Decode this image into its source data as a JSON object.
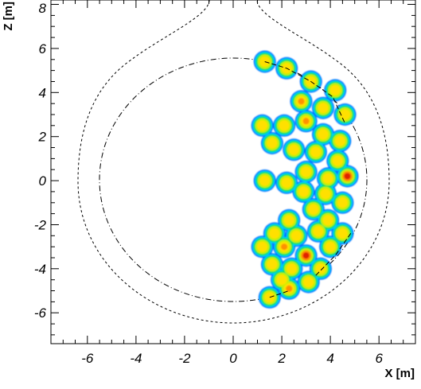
{
  "chart_data": {
    "type": "heatmap",
    "title": "",
    "xlabel": "X [m]",
    "ylabel": "Z [m]",
    "xlim": [
      -7.5,
      7.5
    ],
    "ylim": [
      -7.4,
      8.2
    ],
    "x_ticks": [
      -6,
      -4,
      -2,
      0,
      2,
      4,
      6
    ],
    "y_ticks": [
      -6,
      -4,
      -2,
      0,
      2,
      4,
      6,
      8
    ],
    "x_tick_labels": [
      "-6",
      "-4",
      "-2",
      "0",
      "2",
      "4",
      "6"
    ],
    "y_tick_labels": [
      "-6",
      "-4",
      "-2",
      "0",
      "2",
      "4",
      "6",
      "8"
    ],
    "grid": false,
    "colormap": [
      "#0070ff",
      "#00d0ff",
      "#00e060",
      "#c8f000",
      "#ffe000",
      "#ff9000",
      "#e02000"
    ],
    "blobs": [
      {
        "x": 1.3,
        "z": 5.4,
        "v": 0.72
      },
      {
        "x": 2.2,
        "z": 5.1,
        "v": 0.7
      },
      {
        "x": 3.2,
        "z": 4.5,
        "v": 0.74
      },
      {
        "x": 4.2,
        "z": 4.1,
        "v": 0.7
      },
      {
        "x": 2.8,
        "z": 3.6,
        "v": 0.8
      },
      {
        "x": 3.7,
        "z": 3.3,
        "v": 0.72
      },
      {
        "x": 4.6,
        "z": 3.0,
        "v": 0.7
      },
      {
        "x": 1.2,
        "z": 2.5,
        "v": 0.7
      },
      {
        "x": 2.1,
        "z": 2.5,
        "v": 0.74
      },
      {
        "x": 3.0,
        "z": 2.7,
        "v": 0.8
      },
      {
        "x": 3.7,
        "z": 2.1,
        "v": 0.72
      },
      {
        "x": 4.4,
        "z": 1.8,
        "v": 0.7
      },
      {
        "x": 1.6,
        "z": 1.7,
        "v": 0.72
      },
      {
        "x": 2.5,
        "z": 1.4,
        "v": 0.74
      },
      {
        "x": 3.4,
        "z": 1.3,
        "v": 0.74
      },
      {
        "x": 4.3,
        "z": 0.9,
        "v": 0.7
      },
      {
        "x": 3.0,
        "z": 0.4,
        "v": 0.72
      },
      {
        "x": 3.9,
        "z": 0.1,
        "v": 0.72
      },
      {
        "x": 4.7,
        "z": 0.2,
        "v": 1.0
      },
      {
        "x": 1.3,
        "z": 0.0,
        "v": 0.7
      },
      {
        "x": 2.2,
        "z": -0.1,
        "v": 0.7
      },
      {
        "x": 2.9,
        "z": -0.5,
        "v": 0.72
      },
      {
        "x": 3.8,
        "z": -0.6,
        "v": 0.72
      },
      {
        "x": 4.5,
        "z": -1.0,
        "v": 0.7
      },
      {
        "x": 3.3,
        "z": -1.3,
        "v": 0.72
      },
      {
        "x": 2.3,
        "z": -1.8,
        "v": 0.72
      },
      {
        "x": 3.9,
        "z": -1.8,
        "v": 0.72
      },
      {
        "x": 1.7,
        "z": -2.4,
        "v": 0.74
      },
      {
        "x": 2.6,
        "z": -2.5,
        "v": 0.74
      },
      {
        "x": 3.5,
        "z": -2.3,
        "v": 0.74
      },
      {
        "x": 4.5,
        "z": -2.4,
        "v": 0.7
      },
      {
        "x": 1.2,
        "z": -3.0,
        "v": 0.74
      },
      {
        "x": 2.1,
        "z": -3.0,
        "v": 0.78
      },
      {
        "x": 3.0,
        "z": -3.4,
        "v": 1.0
      },
      {
        "x": 4.0,
        "z": -3.0,
        "v": 0.72
      },
      {
        "x": 1.6,
        "z": -3.8,
        "v": 0.72
      },
      {
        "x": 2.4,
        "z": -4.0,
        "v": 0.74
      },
      {
        "x": 3.6,
        "z": -4.0,
        "v": 0.7
      },
      {
        "x": 2.0,
        "z": -4.5,
        "v": 0.72
      },
      {
        "x": 3.1,
        "z": -4.6,
        "v": 0.7
      },
      {
        "x": 1.5,
        "z": -5.3,
        "v": 0.72
      },
      {
        "x": 2.3,
        "z": -4.9,
        "v": 0.76
      }
    ]
  }
}
